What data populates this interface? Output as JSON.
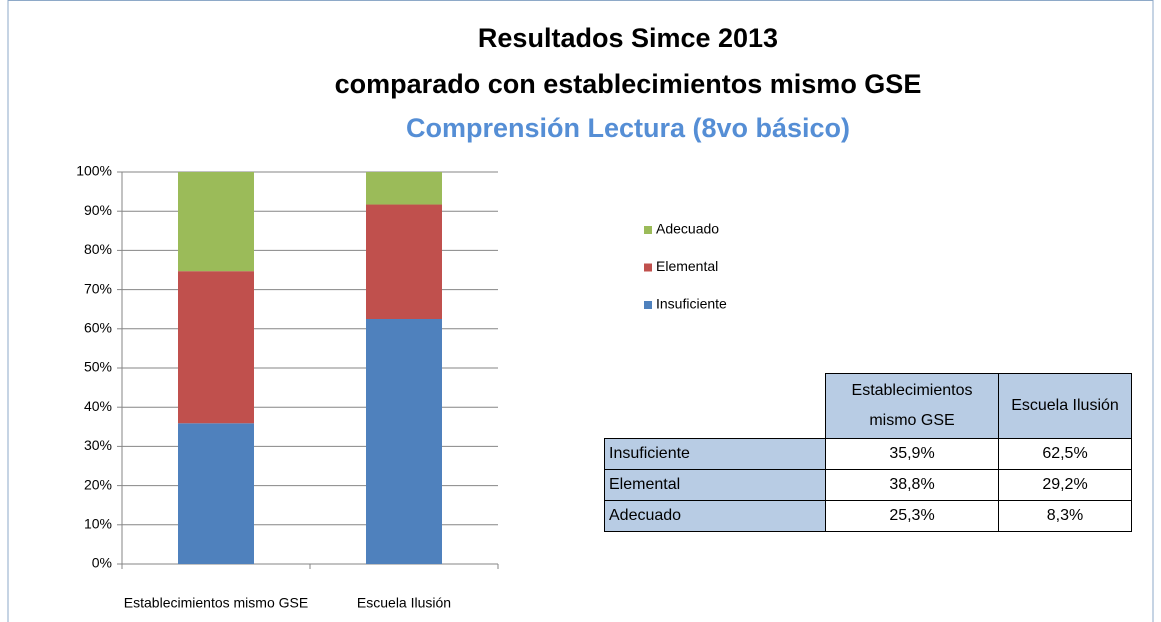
{
  "chart_data": {
    "type": "stacked_bar",
    "title": "Resultados Simce 2013",
    "title_line2": "comparado con establecimientos mismo GSE",
    "subtitle": "Comprensión Lectura (8vo básico)",
    "categories": [
      "Establecimientos mismo  GSE",
      "Escuela Ilusión"
    ],
    "series": [
      {
        "name": "Insuficiente",
        "color": "#4f81bd",
        "values": [
          35.9,
          62.5
        ]
      },
      {
        "name": "Elemental",
        "color": "#c0504d",
        "values": [
          38.8,
          29.2
        ]
      },
      {
        "name": "Adecuado",
        "color": "#9bbb59",
        "values": [
          25.3,
          8.3
        ]
      }
    ],
    "ylim": [
      0,
      100
    ],
    "yticks": [
      {
        "value": 0,
        "label": "0%"
      },
      {
        "value": 10,
        "label": "10%"
      },
      {
        "value": 20,
        "label": "20%"
      },
      {
        "value": 30,
        "label": "30%"
      },
      {
        "value": 40,
        "label": "40%"
      },
      {
        "value": 50,
        "label": "50%"
      },
      {
        "value": 60,
        "label": "60%"
      },
      {
        "value": 70,
        "label": "70%"
      },
      {
        "value": 80,
        "label": "80%"
      },
      {
        "value": 90,
        "label": "90%"
      },
      {
        "value": 100,
        "label": "100%"
      }
    ],
    "grid": true,
    "legend": "right"
  },
  "table": {
    "columns": [
      "Establecimientos mismo GSE",
      "Escuela Ilusión"
    ],
    "rows": [
      {
        "label": "Insuficiente",
        "cells": [
          "35,9%",
          "62,5%"
        ]
      },
      {
        "label": "Elemental",
        "cells": [
          "38,8%",
          "29,2%"
        ]
      },
      {
        "label": "Adecuado",
        "cells": [
          "25,3%",
          "8,3%"
        ]
      }
    ]
  }
}
